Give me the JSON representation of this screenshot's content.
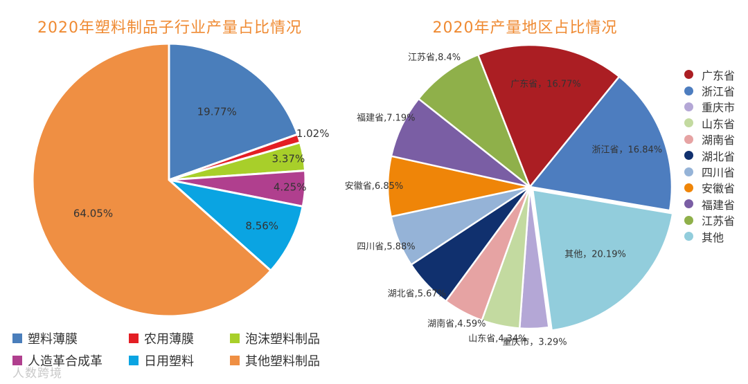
{
  "chart_data": [
    {
      "type": "pie",
      "title": "2020年塑料制品子行业产量占比情况",
      "slices": [
        {
          "label": "塑料薄膜",
          "value": 19.77,
          "display": "19.77%",
          "color": "#4a7ebb"
        },
        {
          "label": "农用薄膜",
          "value": 1.02,
          "display": "1.02%",
          "color": "#e31e24"
        },
        {
          "label": "泡沫塑料制品",
          "value": 3.37,
          "display": "3.37%",
          "color": "#a8cf2a"
        },
        {
          "label": "人造革合成革",
          "value": 4.25,
          "display": "4.25%",
          "color": "#b03f8e"
        },
        {
          "label": "日用塑料",
          "value": 8.56,
          "display": "8.56%",
          "color": "#0aa4e2"
        },
        {
          "label": "其他塑料制品",
          "value": 64.05,
          "display": "64.05%",
          "color": "#ef8f43"
        }
      ],
      "legend_position": "bottom"
    },
    {
      "type": "pie",
      "title": "2020年产量地区占比情况",
      "slices": [
        {
          "label": "浙江省",
          "value": 16.84,
          "display": "浙江省，16.84%",
          "color": "#4d7dbf"
        },
        {
          "label": "其他",
          "value": 20.19,
          "display": "其他，20.19%",
          "color": "#92cddc"
        },
        {
          "label": "重庆市",
          "value": 3.29,
          "display": "重庆市，3.29%",
          "color": "#b4a7d6"
        },
        {
          "label": "山东省",
          "value": 4.34,
          "display": "山东省,4.34%",
          "color": "#c3daa0"
        },
        {
          "label": "湖南省",
          "value": 4.59,
          "display": "湖南省,4.59%",
          "color": "#e6a3a3"
        },
        {
          "label": "湖北省",
          "value": 5.67,
          "display": "湖北省,5.67%",
          "color": "#10306e"
        },
        {
          "label": "四川省",
          "value": 5.88,
          "display": "四川省,5.88%",
          "color": "#95b3d7"
        },
        {
          "label": "安徽省",
          "value": 6.85,
          "display": "安徽省,6.85%",
          "color": "#ef8508"
        },
        {
          "label": "福建省",
          "value": 7.19,
          "display": "福建省,7.19%",
          "color": "#7a5ea4"
        },
        {
          "label": "江苏省",
          "value": 8.4,
          "display": "江苏省,8.4%",
          "color": "#8fb04a"
        },
        {
          "label": "广东省",
          "value": 16.77,
          "display": "广东省，16.77%",
          "color": "#ab1e23"
        }
      ],
      "legend": [
        "广东省",
        "浙江省",
        "重庆市",
        "山东省",
        "湖南省",
        "湖北省",
        "四川省",
        "安徽省",
        "福建省",
        "江苏省",
        "其他"
      ],
      "legend_position": "right"
    }
  ],
  "watermark": "人数跨境"
}
